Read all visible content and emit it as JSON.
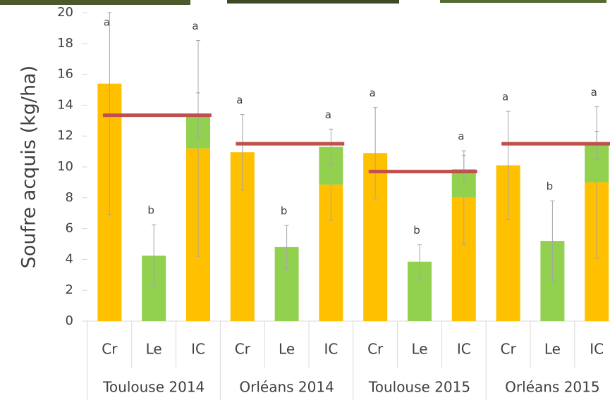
{
  "chart_data": {
    "type": "stacked_bar",
    "ylabel": "Soufre acquis (kg/ha)",
    "groups": [
      "Toulouse 2014",
      "Orléans 2014",
      "Toulouse 2015",
      "Orléans 2015"
    ],
    "categories": [
      "Cr",
      "Le",
      "IC",
      "Cr",
      "Le",
      "IC",
      "Cr",
      "Le",
      "IC",
      "Cr",
      "Le",
      "IC"
    ],
    "series": [
      {
        "color": "#ffc000",
        "values": [
          15.4,
          null,
          11.2,
          10.95,
          null,
          8.85,
          10.9,
          null,
          8.0,
          10.1,
          null,
          9.0
        ],
        "errors": [
          8.5,
          null,
          7.0,
          2.45,
          null,
          2.3,
          2.95,
          null,
          3.05,
          3.5,
          null,
          4.9
        ]
      },
      {
        "color": "#92d050",
        "values": [
          null,
          4.25,
          2.1,
          null,
          4.8,
          2.45,
          null,
          3.85,
          1.85,
          null,
          5.2,
          2.4
        ],
        "errors": [
          null,
          2.0,
          1.5,
          null,
          1.4,
          1.15,
          null,
          1.1,
          0.9,
          null,
          2.6,
          0.9
        ]
      }
    ],
    "letters": [
      "a",
      "b",
      "a",
      "a",
      "b",
      "a",
      "a",
      "b",
      "a",
      "a",
      "b",
      "a"
    ],
    "reference_values": [
      13.35,
      11.5,
      9.7,
      11.5
    ],
    "reference_color": "#c0504d",
    "ylim": [
      0,
      20
    ],
    "yticks": [
      0,
      2,
      4,
      6,
      8,
      10,
      12,
      14,
      16,
      18,
      20
    ]
  }
}
